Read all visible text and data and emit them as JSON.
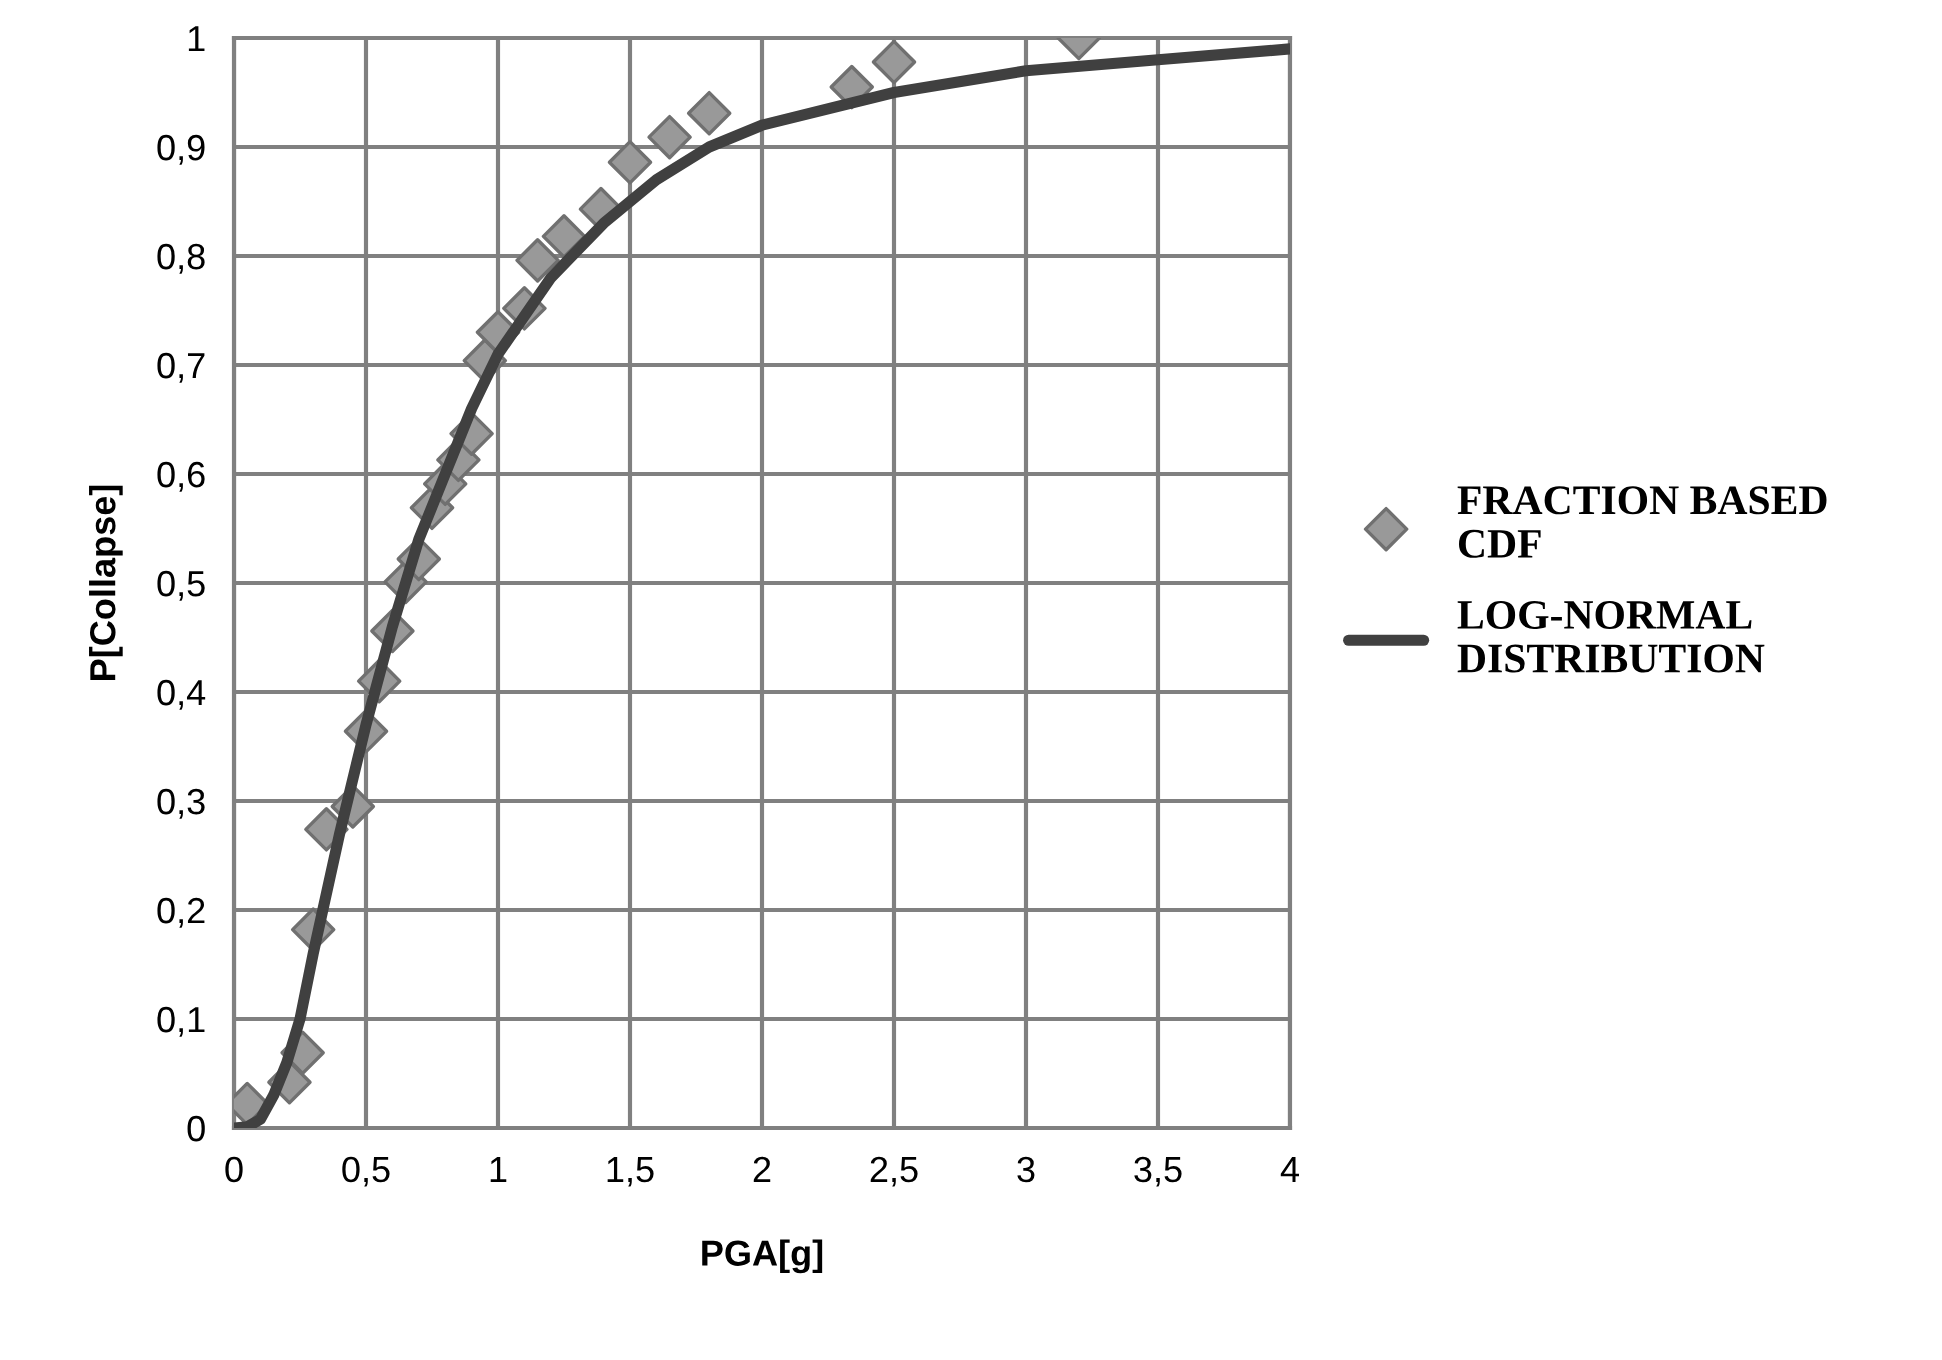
{
  "chart_data": {
    "type": "scatter",
    "xlabel": "PGA[g]",
    "ylabel": "P[Collapse]",
    "xlim": [
      0,
      4
    ],
    "ylim": [
      0,
      1
    ],
    "xticks": [
      0,
      {
        "value": 0.5,
        "label": "0,5"
      },
      1,
      {
        "value": 1.5,
        "label": "1,5"
      },
      2,
      {
        "value": 2.5,
        "label": "2,5"
      },
      3,
      {
        "value": 3.5,
        "label": "3,5"
      },
      4
    ],
    "yticks": [
      0,
      {
        "value": 0.1,
        "label": "0,1"
      },
      {
        "value": 0.2,
        "label": "0,2"
      },
      {
        "value": 0.3,
        "label": "0,3"
      },
      {
        "value": 0.4,
        "label": "0,4"
      },
      {
        "value": 0.5,
        "label": "0,5"
      },
      {
        "value": 0.6,
        "label": "0,6"
      },
      {
        "value": 0.7,
        "label": "0,7"
      },
      {
        "value": 0.8,
        "label": "0,8"
      },
      {
        "value": 0.9,
        "label": "0,9"
      },
      1
    ],
    "grid": true,
    "legend": "right",
    "series": [
      {
        "name": "FRACTION BASED\nCDF",
        "marker": "diamond",
        "color": "#999999",
        "x": [
          0.05,
          0.21,
          0.26,
          0.3,
          0.35,
          0.45,
          0.5,
          0.55,
          0.6,
          0.65,
          0.7,
          0.75,
          0.8,
          0.85,
          0.9,
          0.95,
          1.0,
          1.1,
          1.15,
          1.25,
          1.39,
          1.5,
          1.65,
          1.8,
          2.34,
          2.5,
          3.2
        ],
        "values": [
          0.022,
          0.042,
          0.069,
          0.182,
          0.274,
          0.295,
          0.364,
          0.41,
          0.456,
          0.501,
          0.522,
          0.569,
          0.591,
          0.613,
          0.637,
          0.704,
          0.73,
          0.752,
          0.796,
          0.818,
          0.843,
          0.886,
          0.909,
          0.931,
          0.955,
          0.978,
          1.0
        ]
      },
      {
        "name": "LOG-NORMAL\nDISTRIBUTION",
        "type": "line",
        "marker": "none",
        "line_style": "solid",
        "color": "#404040",
        "x": [
          0,
          0.05,
          0.1,
          0.15,
          0.2,
          0.25,
          0.3,
          0.4,
          0.5,
          0.6,
          0.7,
          0.8,
          0.9,
          1.0,
          1.2,
          1.4,
          1.6,
          1.8,
          2.0,
          2.5,
          3.0,
          3.5,
          4.0
        ],
        "values": [
          0,
          0.001,
          0.008,
          0.03,
          0.06,
          0.1,
          0.16,
          0.27,
          0.37,
          0.46,
          0.54,
          0.6,
          0.66,
          0.71,
          0.78,
          0.83,
          0.87,
          0.9,
          0.92,
          0.95,
          0.97,
          0.98,
          0.99
        ]
      }
    ]
  }
}
